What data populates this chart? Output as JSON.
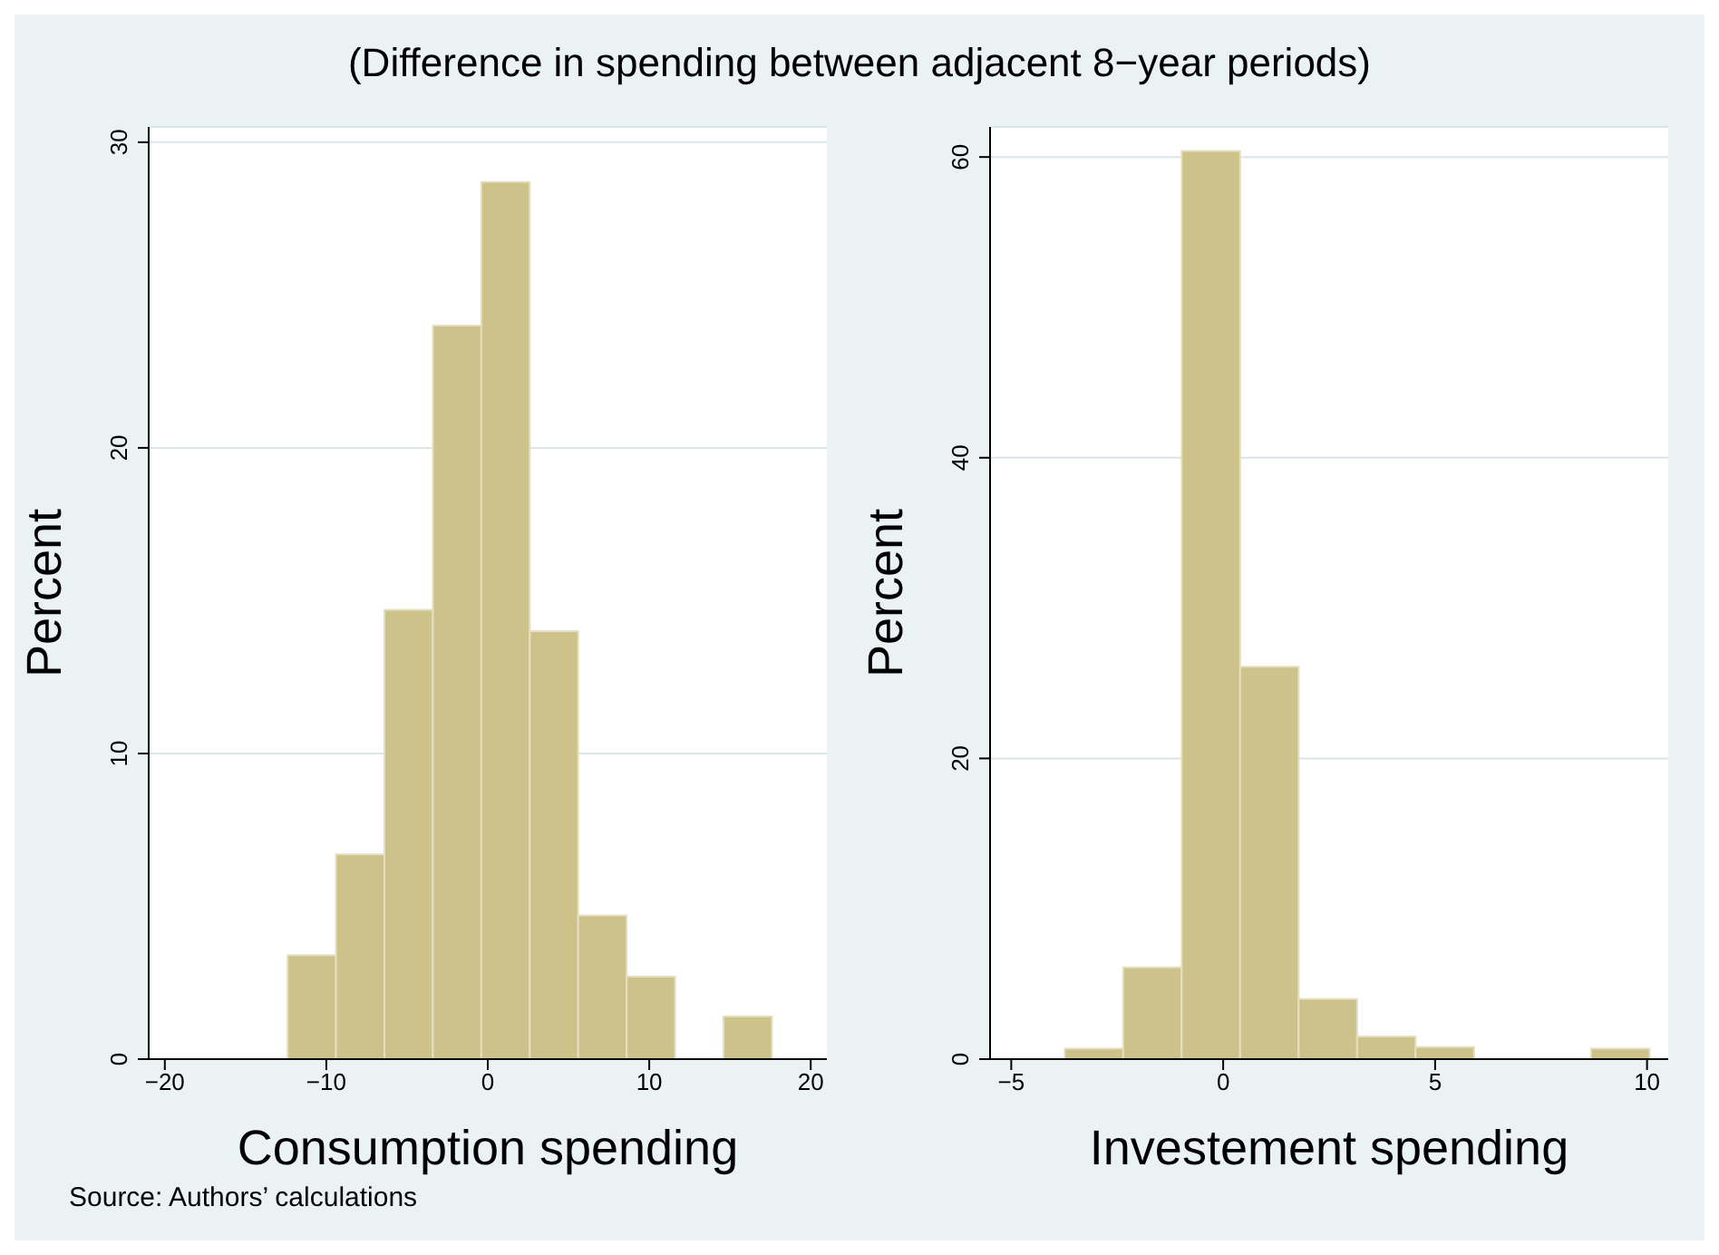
{
  "chart_data": [
    {
      "type": "histogram",
      "title": "(Difference in spending between adjacent 8−year periods)",
      "xlabel": "Consumption spending",
      "ylabel": "Percent",
      "color": "#cdc28a",
      "bins": [
        -12.4,
        -9.4,
        -6.4,
        -3.4,
        -0.4,
        2.6,
        5.6,
        8.6,
        11.6,
        14.6,
        17.6
      ],
      "values": [
        3.4,
        6.7,
        14.7,
        24.0,
        28.7,
        14.0,
        4.7,
        2.7,
        0,
        1.4
      ],
      "xlim": [
        -21,
        21
      ],
      "xticks": [
        {
          "value": -20,
          "label": "−20"
        },
        {
          "value": -10,
          "label": "−10"
        },
        0,
        10,
        20
      ],
      "ylim": [
        0,
        30.5
      ],
      "yticks": [
        0,
        10,
        20,
        30
      ],
      "grid": "y",
      "annotations": [
        "Source: Authors’ calculations"
      ]
    },
    {
      "type": "histogram",
      "xlabel": "Investement spending",
      "ylabel": "Percent",
      "color": "#cdc28a",
      "bins": [
        -3.74,
        -2.36,
        -0.98,
        0.4,
        1.78,
        3.16,
        4.54,
        5.92,
        7.3,
        8.68,
        10.06
      ],
      "values": [
        0.7,
        6.1,
        60.4,
        26.1,
        4.0,
        1.5,
        0.8,
        0,
        0,
        0.7
      ],
      "xlim": [
        -5.5,
        10.5
      ],
      "xticks": [
        {
          "value": -5,
          "label": "−5"
        },
        0,
        5,
        10
      ],
      "ylim": [
        0,
        62
      ],
      "yticks": [
        0,
        20,
        40,
        60
      ],
      "grid": "y"
    }
  ]
}
